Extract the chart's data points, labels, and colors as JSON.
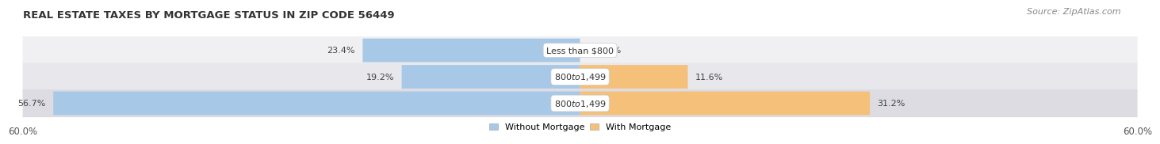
{
  "title": "REAL ESTATE TAXES BY MORTGAGE STATUS IN ZIP CODE 56449",
  "source": "Source: ZipAtlas.com",
  "rows": [
    {
      "label": "Less than $800",
      "without_mortgage": 23.4,
      "with_mortgage": 0.0
    },
    {
      "label": "$800 to $1,499",
      "without_mortgage": 19.2,
      "with_mortgage": 11.6
    },
    {
      "label": "$800 to $1,499",
      "without_mortgage": 56.7,
      "with_mortgage": 31.2
    }
  ],
  "axis_max": 60.0,
  "color_without": "#a8c8e8",
  "color_with": "#f5c07a",
  "bg_color_light": "#f0f0f2",
  "bg_color_mid": "#e8e8ec",
  "bg_color_dark": "#dcdce2",
  "legend_without": "Without Mortgage",
  "legend_with": "With Mortgage",
  "title_fontsize": 9.5,
  "source_fontsize": 8,
  "label_fontsize": 8,
  "tick_fontsize": 8.5
}
